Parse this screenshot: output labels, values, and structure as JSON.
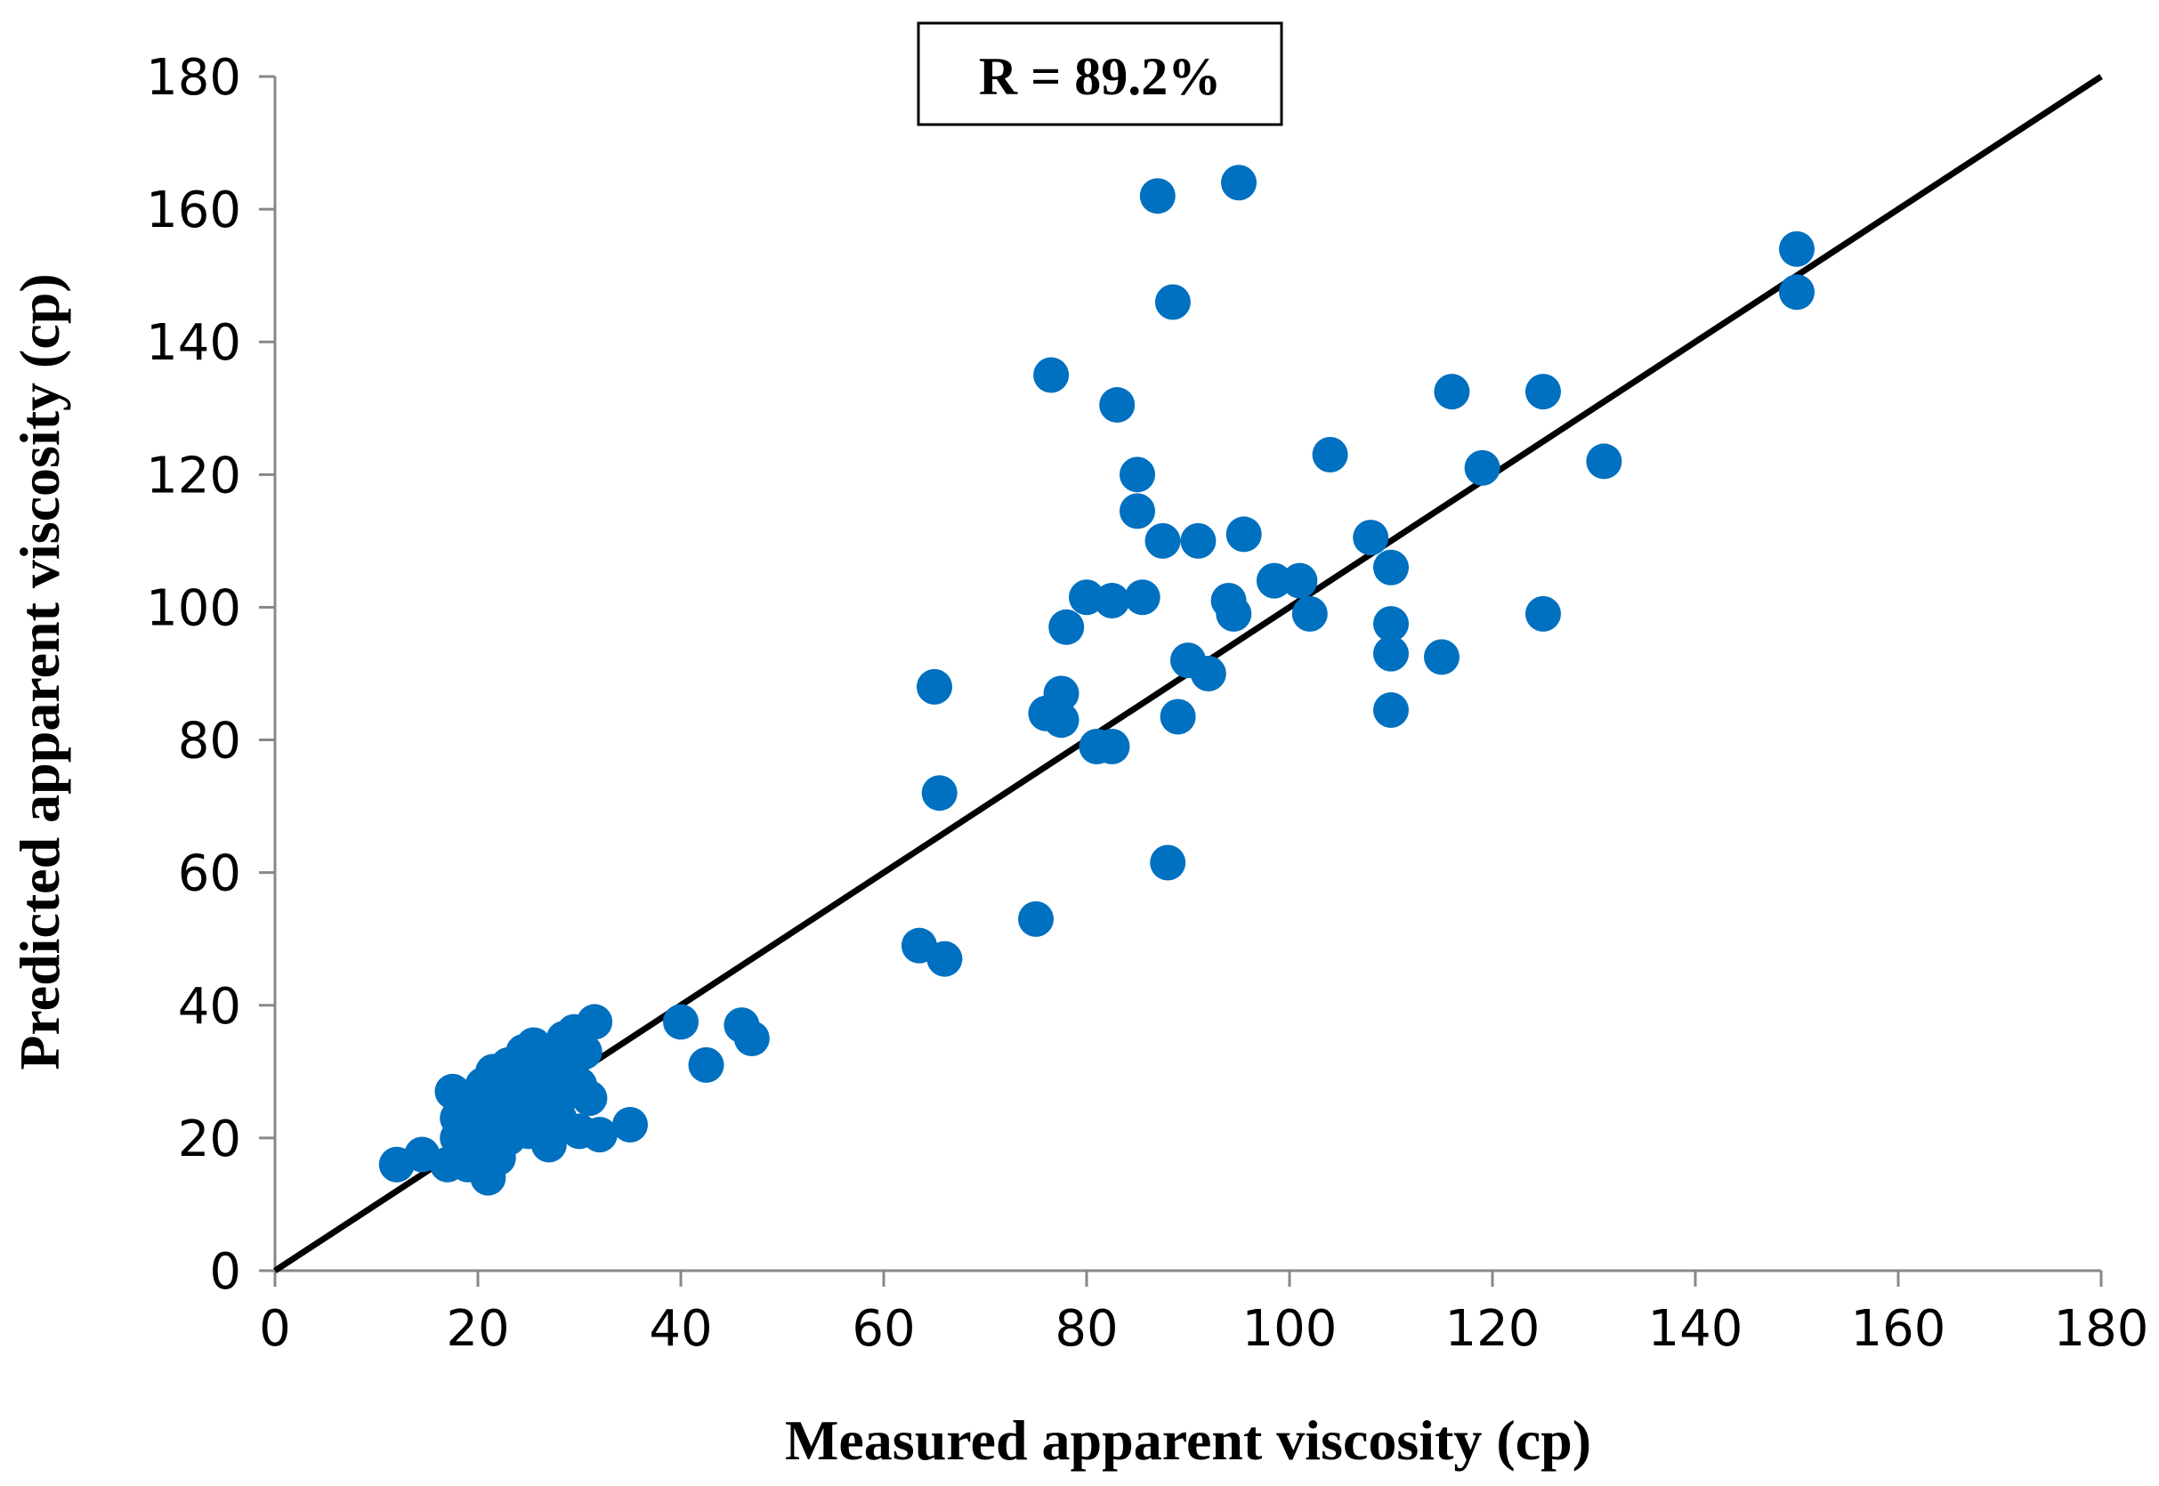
{
  "chart_data": {
    "type": "scatter",
    "xlabel": "Measured apparent viscosity (cp)",
    "ylabel": "Predicted apparent viscosity (cp)",
    "xlim": [
      0,
      180
    ],
    "ylim": [
      0,
      180
    ],
    "xticks": [
      "0",
      "20",
      "40",
      "60",
      "80",
      "100",
      "120",
      "140",
      "160",
      "180"
    ],
    "yticks": [
      "0",
      "20",
      "40",
      "60",
      "80",
      "100",
      "120",
      "140",
      "160",
      "180"
    ],
    "grid": false,
    "annotation": "R = 89.2%",
    "reference_line": {
      "from": [
        0,
        0
      ],
      "to": [
        180,
        180
      ],
      "color": "#000000"
    },
    "marker_color": "#0070C0",
    "series": [
      {
        "points": [
          [
            12,
            16
          ],
          [
            14.5,
            17.5
          ],
          [
            17,
            16
          ],
          [
            17.5,
            27
          ],
          [
            18,
            20
          ],
          [
            18,
            23
          ],
          [
            19,
            16
          ],
          [
            19.5,
            21
          ],
          [
            20,
            18
          ],
          [
            20,
            25
          ],
          [
            20.5,
            22
          ],
          [
            20.5,
            28
          ],
          [
            21,
            14
          ],
          [
            21,
            20
          ],
          [
            21,
            24
          ],
          [
            21.5,
            30
          ],
          [
            22,
            17
          ],
          [
            22,
            22
          ],
          [
            22,
            26
          ],
          [
            22.5,
            28
          ],
          [
            23,
            20
          ],
          [
            23,
            24
          ],
          [
            23,
            31
          ],
          [
            23.5,
            25
          ],
          [
            24,
            22
          ],
          [
            24,
            27
          ],
          [
            24.5,
            29
          ],
          [
            24.5,
            33
          ],
          [
            25,
            21
          ],
          [
            25,
            24
          ],
          [
            25,
            26
          ],
          [
            25.5,
            34
          ],
          [
            26,
            22
          ],
          [
            26,
            27
          ],
          [
            26.5,
            30
          ],
          [
            27,
            19
          ],
          [
            27,
            25
          ],
          [
            27,
            28
          ],
          [
            27.5,
            33
          ],
          [
            28,
            23
          ],
          [
            28,
            31
          ],
          [
            28.5,
            35
          ],
          [
            29,
            27
          ],
          [
            29,
            30
          ],
          [
            29.5,
            36
          ],
          [
            30,
            21
          ],
          [
            30,
            28
          ],
          [
            30.5,
            33
          ],
          [
            31,
            26
          ],
          [
            31.5,
            37.5
          ],
          [
            32,
            20.5
          ],
          [
            35,
            22
          ],
          [
            40,
            37.5
          ],
          [
            42.5,
            31
          ],
          [
            46,
            37
          ],
          [
            47,
            35
          ],
          [
            63.5,
            49
          ],
          [
            65,
            88
          ],
          [
            65.5,
            72
          ],
          [
            66,
            47
          ],
          [
            75,
            53
          ],
          [
            76,
            84
          ],
          [
            76.5,
            135
          ],
          [
            77.5,
            87
          ],
          [
            77.5,
            83
          ],
          [
            78,
            97
          ],
          [
            80,
            101.5
          ],
          [
            81,
            79
          ],
          [
            82.5,
            79
          ],
          [
            82.5,
            101
          ],
          [
            83,
            130.5
          ],
          [
            85,
            114.5
          ],
          [
            85,
            120
          ],
          [
            85.5,
            101.5
          ],
          [
            87,
            162
          ],
          [
            87.5,
            110
          ],
          [
            88,
            61.5
          ],
          [
            88.5,
            146
          ],
          [
            89,
            83.5
          ],
          [
            90,
            92
          ],
          [
            91,
            110
          ],
          [
            92,
            90
          ],
          [
            94,
            101
          ],
          [
            94.5,
            99
          ],
          [
            95,
            164
          ],
          [
            95.5,
            111
          ],
          [
            98.5,
            104
          ],
          [
            101,
            104
          ],
          [
            102,
            99
          ],
          [
            104,
            123
          ],
          [
            108,
            110.5
          ],
          [
            110,
            106
          ],
          [
            110,
            97.5
          ],
          [
            110,
            93
          ],
          [
            110,
            84.5
          ],
          [
            115,
            92.5
          ],
          [
            116,
            132.5
          ],
          [
            119,
            121
          ],
          [
            125,
            132.5
          ],
          [
            125,
            99
          ],
          [
            131,
            122
          ],
          [
            150,
            154
          ],
          [
            150,
            147.5
          ]
        ]
      }
    ]
  }
}
